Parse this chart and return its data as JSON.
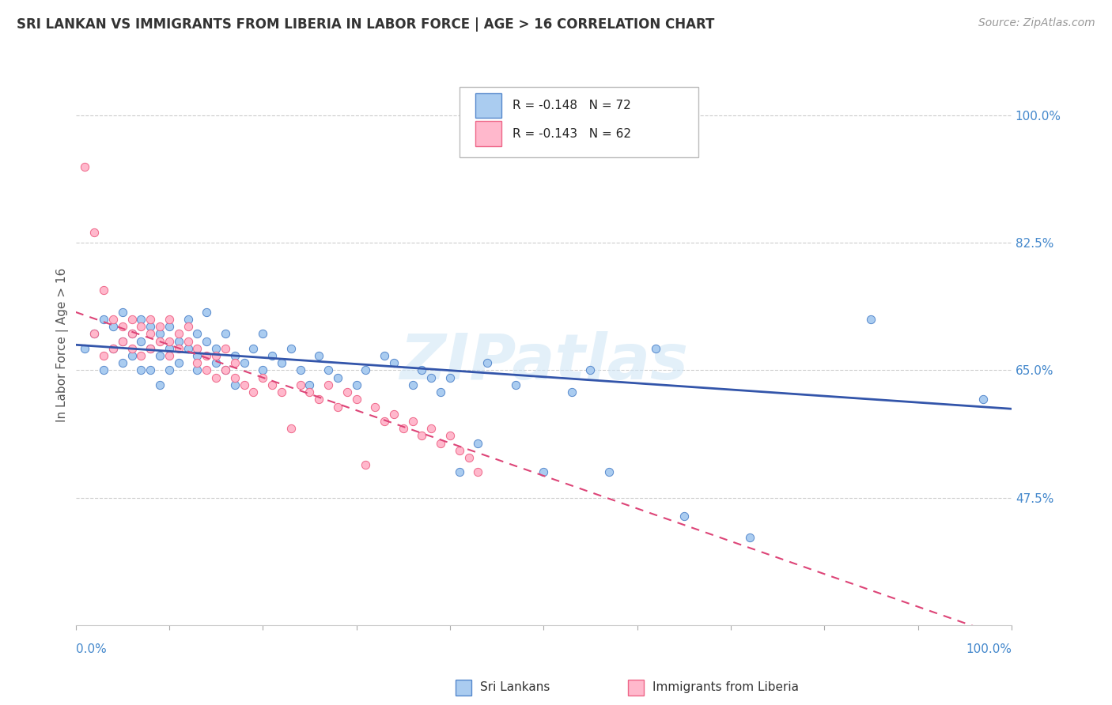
{
  "title": "SRI LANKAN VS IMMIGRANTS FROM LIBERIA IN LABOR FORCE | AGE > 16 CORRELATION CHART",
  "source": "Source: ZipAtlas.com",
  "ylabel": "In Labor Force | Age > 16",
  "y_tick_labels": [
    "47.5%",
    "65.0%",
    "82.5%",
    "100.0%"
  ],
  "y_tick_values": [
    0.475,
    0.65,
    0.825,
    1.0
  ],
  "x_range": [
    0.0,
    1.0
  ],
  "y_range": [
    0.3,
    1.07
  ],
  "sri_lankan_R": -0.148,
  "sri_lankan_N": 72,
  "liberia_R": -0.143,
  "liberia_N": 62,
  "sri_lankan_color": "#aaccf0",
  "sri_lankan_edge_color": "#5588cc",
  "liberia_color": "#ffb8cc",
  "liberia_edge_color": "#ee6688",
  "sri_lankan_line_color": "#3355aa",
  "liberia_line_color": "#dd4477",
  "watermark": "ZIPatlas",
  "legend_label_1": "Sri Lankans",
  "legend_label_2": "Immigrants from Liberia",
  "sl_x": [
    0.01,
    0.02,
    0.03,
    0.03,
    0.04,
    0.04,
    0.05,
    0.05,
    0.05,
    0.06,
    0.06,
    0.07,
    0.07,
    0.07,
    0.08,
    0.08,
    0.08,
    0.09,
    0.09,
    0.09,
    0.1,
    0.1,
    0.1,
    0.11,
    0.11,
    0.12,
    0.12,
    0.13,
    0.13,
    0.13,
    0.14,
    0.14,
    0.15,
    0.15,
    0.16,
    0.16,
    0.17,
    0.17,
    0.18,
    0.19,
    0.2,
    0.2,
    0.21,
    0.22,
    0.23,
    0.24,
    0.25,
    0.26,
    0.27,
    0.28,
    0.3,
    0.31,
    0.33,
    0.34,
    0.36,
    0.37,
    0.38,
    0.39,
    0.4,
    0.41,
    0.43,
    0.44,
    0.47,
    0.5,
    0.53,
    0.55,
    0.57,
    0.62,
    0.65,
    0.72,
    0.85,
    0.97
  ],
  "sl_y": [
    0.68,
    0.7,
    0.65,
    0.72,
    0.68,
    0.71,
    0.69,
    0.66,
    0.73,
    0.67,
    0.7,
    0.65,
    0.69,
    0.72,
    0.68,
    0.71,
    0.65,
    0.67,
    0.7,
    0.63,
    0.68,
    0.65,
    0.71,
    0.66,
    0.69,
    0.68,
    0.72,
    0.65,
    0.7,
    0.67,
    0.69,
    0.73,
    0.66,
    0.68,
    0.65,
    0.7,
    0.67,
    0.63,
    0.66,
    0.68,
    0.65,
    0.7,
    0.67,
    0.66,
    0.68,
    0.65,
    0.63,
    0.67,
    0.65,
    0.64,
    0.63,
    0.65,
    0.67,
    0.66,
    0.63,
    0.65,
    0.64,
    0.62,
    0.64,
    0.51,
    0.55,
    0.66,
    0.63,
    0.51,
    0.62,
    0.65,
    0.51,
    0.68,
    0.45,
    0.42,
    0.72,
    0.61
  ],
  "lib_x": [
    0.01,
    0.02,
    0.02,
    0.03,
    0.03,
    0.04,
    0.04,
    0.05,
    0.05,
    0.06,
    0.06,
    0.06,
    0.07,
    0.07,
    0.08,
    0.08,
    0.08,
    0.09,
    0.09,
    0.1,
    0.1,
    0.1,
    0.11,
    0.11,
    0.12,
    0.12,
    0.13,
    0.13,
    0.14,
    0.14,
    0.15,
    0.15,
    0.16,
    0.16,
    0.17,
    0.17,
    0.18,
    0.19,
    0.2,
    0.21,
    0.22,
    0.23,
    0.24,
    0.25,
    0.26,
    0.27,
    0.28,
    0.29,
    0.3,
    0.31,
    0.32,
    0.33,
    0.34,
    0.35,
    0.36,
    0.37,
    0.38,
    0.39,
    0.4,
    0.41,
    0.42,
    0.43
  ],
  "lib_y": [
    0.93,
    0.84,
    0.7,
    0.76,
    0.67,
    0.72,
    0.68,
    0.71,
    0.69,
    0.72,
    0.7,
    0.68,
    0.71,
    0.67,
    0.72,
    0.7,
    0.68,
    0.71,
    0.69,
    0.72,
    0.69,
    0.67,
    0.7,
    0.68,
    0.71,
    0.69,
    0.68,
    0.66,
    0.67,
    0.65,
    0.67,
    0.64,
    0.68,
    0.65,
    0.66,
    0.64,
    0.63,
    0.62,
    0.64,
    0.63,
    0.62,
    0.57,
    0.63,
    0.62,
    0.61,
    0.63,
    0.6,
    0.62,
    0.61,
    0.52,
    0.6,
    0.58,
    0.59,
    0.57,
    0.58,
    0.56,
    0.57,
    0.55,
    0.56,
    0.54,
    0.53,
    0.51
  ]
}
